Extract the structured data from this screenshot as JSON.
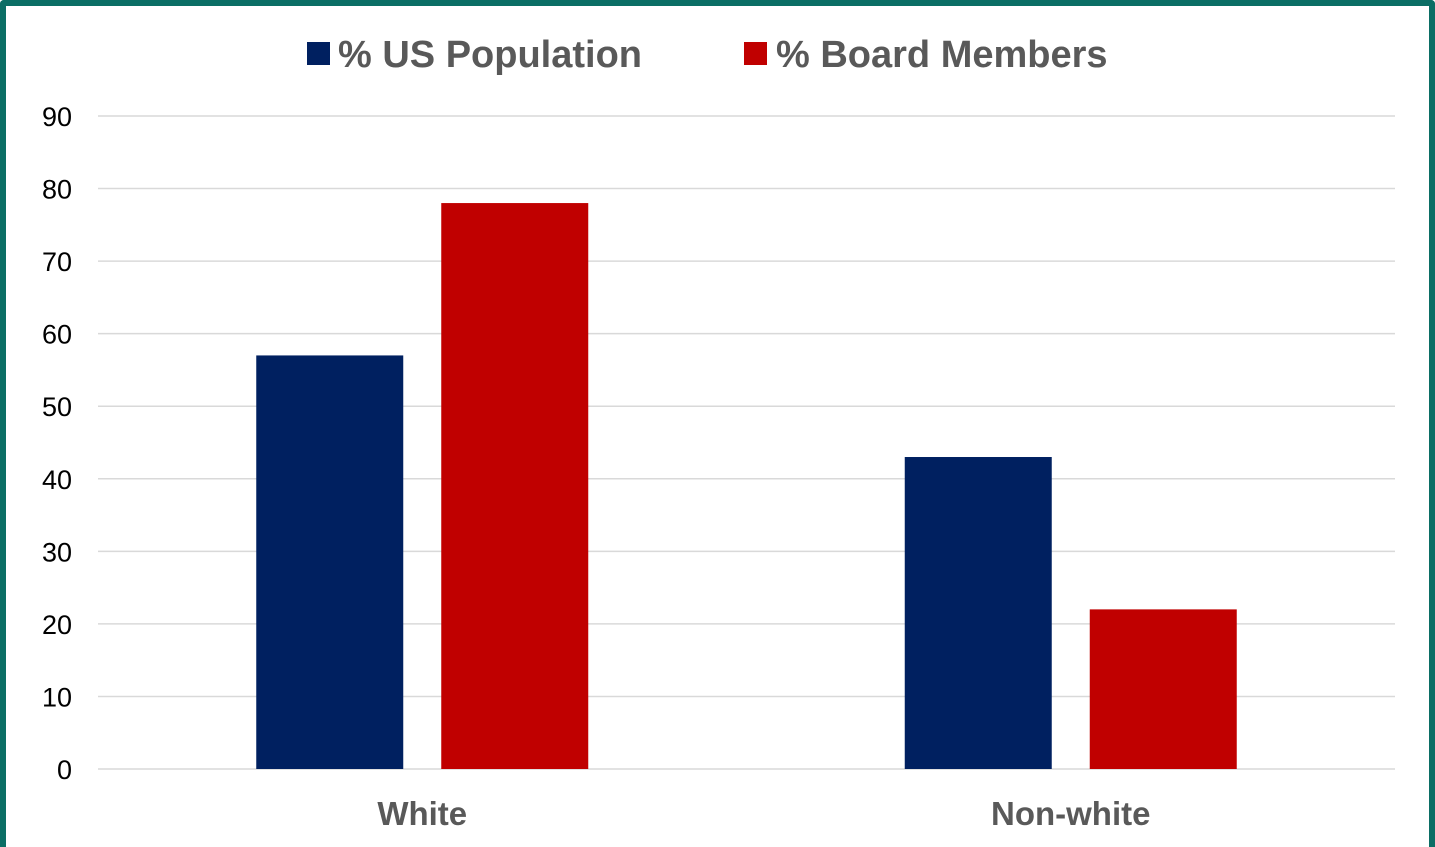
{
  "chart_data": {
    "type": "bar",
    "title": "",
    "xlabel": "",
    "ylabel": "",
    "categories": [
      "White",
      "Non-white"
    ],
    "series": [
      {
        "name": "% US Population",
        "values": [
          57,
          43
        ],
        "color": "#002060"
      },
      {
        "name": "% Board Members",
        "values": [
          78,
          22
        ],
        "color": "#c00000"
      }
    ],
    "ylim": [
      0,
      90
    ],
    "yticks": [
      "0",
      "10",
      "20",
      "30",
      "40",
      "50",
      "60",
      "70",
      "80",
      "90"
    ],
    "grid": true,
    "legend_position": "top-center"
  },
  "colors": {
    "frame": "#0b6e65",
    "grid": "#d9d9d9",
    "label": "#595959"
  }
}
